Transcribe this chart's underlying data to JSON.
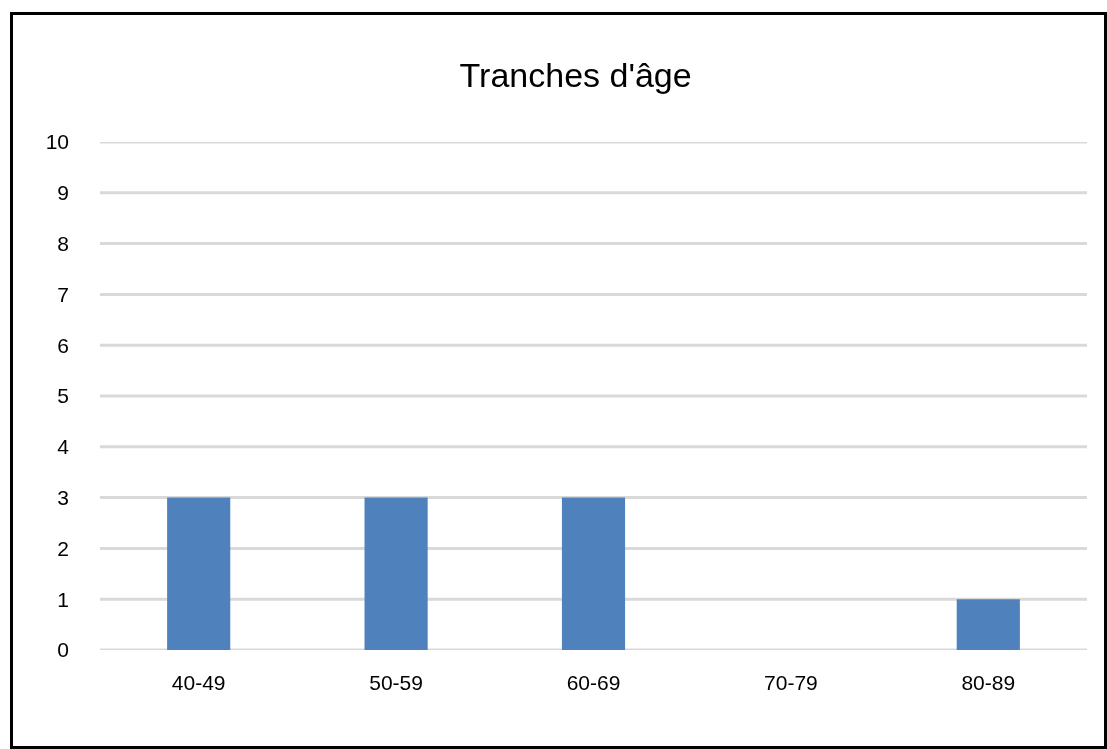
{
  "chart_data": {
    "type": "bar",
    "title": "Tranches d'âge",
    "categories": [
      "40-49",
      "50-59",
      "60-69",
      "70-79",
      "80-89"
    ],
    "values": [
      3,
      3,
      3,
      0,
      1
    ],
    "color": "#4f81bd",
    "ylim": [
      0,
      10
    ],
    "yticks": [
      0,
      1,
      2,
      3,
      4,
      5,
      6,
      7,
      8,
      9,
      10
    ],
    "grid": "y"
  }
}
